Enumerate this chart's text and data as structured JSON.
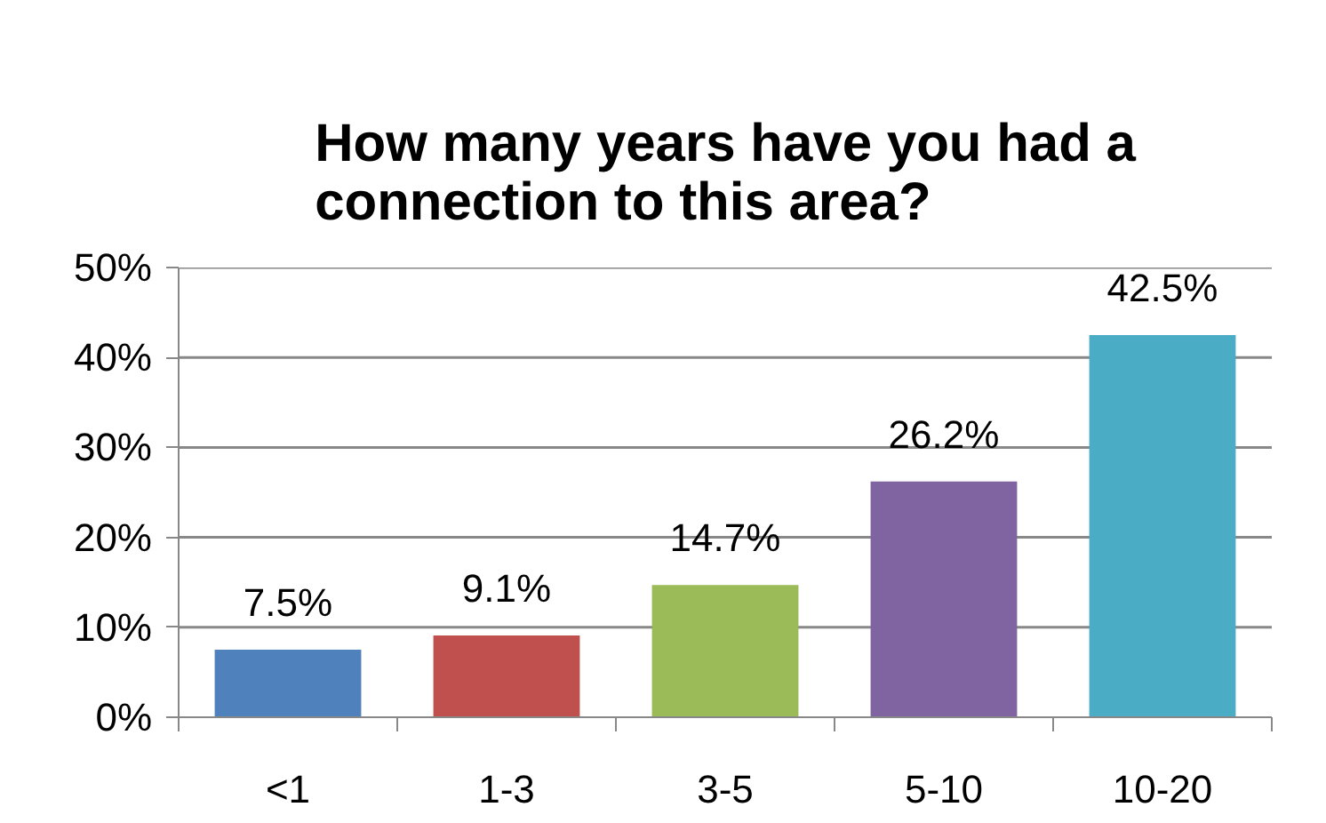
{
  "chart_data": {
    "type": "bar",
    "title": "How many years have you had a connection to this area?",
    "categories": [
      "<1",
      "1-3",
      "3-5",
      "5-10",
      "10-20"
    ],
    "values": [
      7.5,
      9.1,
      14.7,
      26.2,
      42.5
    ],
    "colors": [
      "#4f81bd",
      "#c0504d",
      "#9bbb59",
      "#8064a2",
      "#4bacc6"
    ],
    "value_labels": [
      "7.5%",
      "9.1%",
      "14.7%",
      "26.2%",
      "42.5%"
    ],
    "ylim": [
      0,
      50
    ],
    "yticks": [
      {
        "value": 0,
        "label": "0%"
      },
      {
        "value": 10,
        "label": "10%"
      },
      {
        "value": 20,
        "label": "20%"
      },
      {
        "value": 30,
        "label": "30%"
      },
      {
        "value": 40,
        "label": "40%"
      },
      {
        "value": 50,
        "label": "50%"
      }
    ],
    "grid": "y"
  }
}
